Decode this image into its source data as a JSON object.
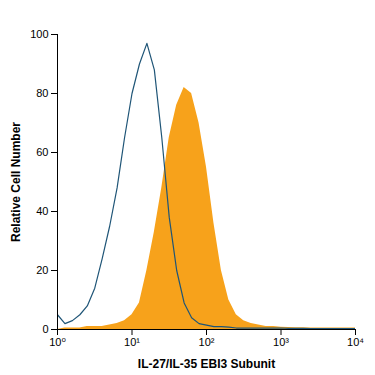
{
  "chart_data": {
    "type": "line",
    "x_label": "IL-27/IL-35 EBI3 Subunit",
    "y_label": "Relative Cell Number",
    "x": [
      1,
      1.259,
      1.585,
      1.995,
      2.512,
      3.162,
      3.981,
      5.012,
      6.31,
      7.943,
      10,
      12.59,
      15.85,
      19.95,
      25.12,
      31.62,
      39.81,
      50.12,
      63.1,
      79.43,
      100,
      125.9,
      158.5,
      199.5,
      251.2,
      316.2,
      398.1,
      501.2,
      631,
      794.3,
      1000,
      1259,
      1585,
      1995,
      2512,
      3162,
      3981,
      5012,
      6310,
      7943,
      10000
    ],
    "series": [
      {
        "type": "area",
        "color": "#f7a21b",
        "values": [
          0,
          0.5,
          0.5,
          0.5,
          1,
          1,
          1,
          1.5,
          2,
          3,
          5,
          9,
          20,
          33,
          48,
          65,
          76,
          82,
          80,
          70,
          55,
          36,
          20,
          10,
          5,
          3,
          2,
          1.5,
          1,
          1,
          0.8,
          0.7,
          0.6,
          0.6,
          0.5,
          0.5,
          0.5,
          0.5,
          0.5,
          0.5,
          0.5
        ]
      },
      {
        "type": "line",
        "color": "#1f5577",
        "values": [
          5,
          2,
          3,
          5,
          8,
          14,
          24,
          35,
          48,
          65,
          80,
          90,
          97,
          88,
          65,
          38,
          20,
          9,
          4,
          2,
          1.5,
          1,
          1,
          0.8,
          0.5,
          0.5,
          0.5,
          0.5,
          0.5,
          0.5,
          0.5,
          0.4,
          0.4,
          0.4,
          0.3,
          0.3,
          0.3,
          0.3,
          0.3,
          0.3,
          0.3
        ]
      }
    ],
    "xlim": [
      1,
      10000
    ],
    "xticks": [
      {
        "value": 1,
        "label": "10⁰"
      },
      {
        "value": 10,
        "label": "10¹"
      },
      {
        "value": 100,
        "label": "10²"
      },
      {
        "value": 1000,
        "label": "10³"
      },
      {
        "value": 10000,
        "label": "10⁴"
      }
    ],
    "ylim": [
      0,
      100
    ],
    "yticks": [
      0,
      20,
      40,
      60,
      80,
      100
    ],
    "log": "x",
    "grid": false
  }
}
